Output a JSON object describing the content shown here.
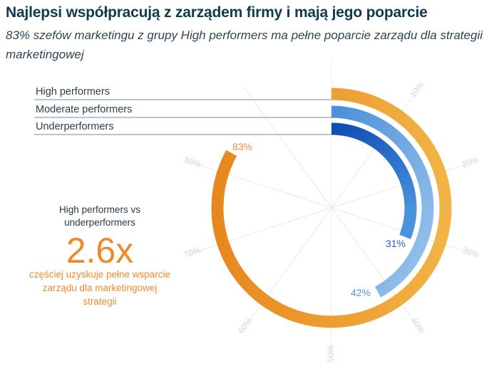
{
  "header": {
    "title": "Najlepsi współpracują z zarządem firmy i mają jego poparcie",
    "subtitle": "83% szefów marketingu z grupy High performers ma pełne poparcie zarządu dla strategii marketingowej"
  },
  "kpi": {
    "heading": "High  performers vs underperformers",
    "value": "2.6x",
    "description": "częściej uzyskuje pełne wsparcie zarządu dla marketingowej strategii"
  },
  "chart_data": {
    "type": "radial-bar",
    "title": "Najlepsi współpracują z zarządem firmy i mają jego poparcie",
    "categories": [
      "High performers",
      "Moderate performers",
      "Underperformers"
    ],
    "values": [
      83,
      42,
      31
    ],
    "value_labels": [
      "83%",
      "42%",
      "31%"
    ],
    "colors": [
      "#ef9a2c",
      "#6fa8e0",
      "#1f5fc4"
    ],
    "axis_ticks": [
      "10%",
      "20%",
      "30%",
      "40%",
      "50%",
      "60%",
      "70%",
      "80%"
    ],
    "axis_range": [
      0,
      100
    ],
    "grid": true
  }
}
